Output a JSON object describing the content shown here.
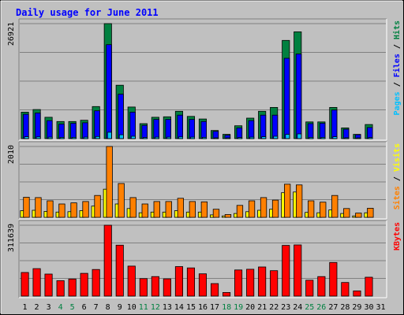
{
  "title": "Daily usage for June 2011",
  "colors": {
    "background": "#c0c0c0",
    "title": "#0000ff",
    "hits": "#008040",
    "files": "#0000ff",
    "pages": "#00c0ff",
    "visits": "#ffff00",
    "sites": "#ff8000",
    "kbytes": "#ff0000",
    "gridline": "#808080",
    "weekend_label": "#008040",
    "weekday_label": "#000000"
  },
  "chart_data": {
    "type": "bar",
    "title": "Daily usage for June 2011",
    "categories": [
      "1",
      "2",
      "3",
      "4",
      "5",
      "6",
      "7",
      "8",
      "9",
      "10",
      "11",
      "12",
      "13",
      "14",
      "15",
      "16",
      "17",
      "18",
      "19",
      "20",
      "21",
      "22",
      "23",
      "24",
      "25",
      "26",
      "27",
      "28",
      "29",
      "30",
      "31"
    ],
    "weekend_days": [
      "4",
      "5",
      "11",
      "12",
      "18",
      "19",
      "25",
      "26"
    ],
    "panels": [
      {
        "name": "hits-files-pages",
        "ymax_label": "26921",
        "ymax": 26921,
        "legend": [
          {
            "text": "Pages",
            "color": "#00c0ff"
          },
          {
            "text": " / ",
            "color": "#000000"
          },
          {
            "text": "Files",
            "color": "#0000ff"
          },
          {
            "text": " / ",
            "color": "#000000"
          },
          {
            "text": "Hits",
            "color": "#008040"
          }
        ],
        "series": [
          {
            "name": "Hits",
            "color": "#008040",
            "values": [
              6200,
              6800,
              5000,
              4000,
              4000,
              4300,
              7500,
              26921,
              12500,
              7400,
              3500,
              5000,
              5100,
              6400,
              5200,
              4600,
              1900,
              1000,
              3000,
              4800,
              6400,
              7300,
              23000,
              25000,
              3900,
              3900,
              7300,
              2500,
              1000,
              3300,
              0
            ]
          },
          {
            "name": "Files",
            "color": "#0000ff",
            "values": [
              5700,
              6000,
              4200,
              3400,
              3600,
              3700,
              6500,
              22000,
              10400,
              6200,
              3100,
              4500,
              4500,
              5500,
              4500,
              4000,
              1700,
              800,
              2500,
              4200,
              5500,
              5500,
              18800,
              19800,
              3500,
              3600,
              6700,
              2200,
              900,
              2600,
              0
            ]
          },
          {
            "name": "Pages",
            "color": "#00c0ff",
            "values": [
              450,
              400,
              350,
              300,
              300,
              350,
              500,
              1500,
              900,
              550,
              250,
              350,
              350,
              400,
              350,
              300,
              150,
              90,
              250,
              350,
              450,
              550,
              1000,
              1100,
              300,
              300,
              450,
              200,
              90,
              250,
              0
            ]
          }
        ]
      },
      {
        "name": "visits-sites",
        "ymax_label": "2010",
        "ymax": 2010,
        "legend": [
          {
            "text": "Sites",
            "color": "#ff8000"
          },
          {
            "text": " / ",
            "color": "#000000"
          },
          {
            "text": "Visits",
            "color": "#ffff00"
          }
        ],
        "series": [
          {
            "name": "Visits",
            "color": "#ffff00",
            "values": [
              190,
              200,
              170,
              150,
              160,
              190,
              320,
              800,
              380,
              250,
              130,
              150,
              150,
              190,
              150,
              150,
              70,
              40,
              110,
              160,
              200,
              230,
              700,
              720,
              140,
              130,
              210,
              110,
              40,
              130,
              0
            ]
          },
          {
            "name": "Sites",
            "color": "#ff8000",
            "values": [
              570,
              560,
              470,
              380,
              410,
              450,
              620,
              2010,
              960,
              560,
              380,
              450,
              450,
              540,
              450,
              440,
              230,
              80,
              340,
              470,
              560,
              490,
              940,
              920,
              470,
              430,
              620,
              250,
              120,
              260,
              0
            ]
          }
        ]
      },
      {
        "name": "kbytes",
        "ymax_label": "311639",
        "ymax": 311639,
        "legend": [
          {
            "text": "KBytes",
            "color": "#ff0000"
          }
        ],
        "series": [
          {
            "name": "KBytes",
            "color": "#ff0000",
            "values": [
              104000,
              121000,
              97000,
              68000,
              75000,
              100000,
              117000,
              311639,
              224000,
              132000,
              77000,
              86000,
              76000,
              130000,
              124000,
              98000,
              55000,
              16000,
              115000,
              118000,
              128000,
              112000,
              223000,
              225000,
              70000,
              86000,
              148000,
              60000,
              23000,
              83000,
              0
            ]
          }
        ]
      }
    ]
  }
}
